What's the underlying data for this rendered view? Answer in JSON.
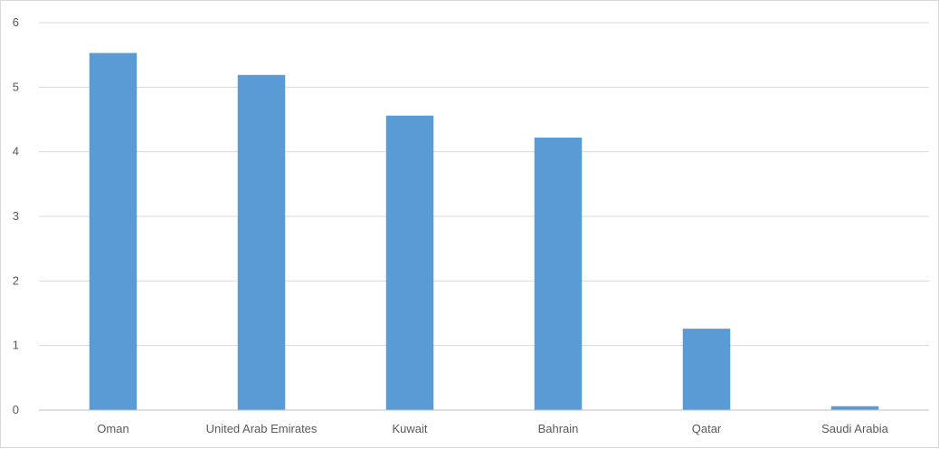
{
  "chart_data": {
    "type": "bar",
    "title": "",
    "xlabel": "",
    "ylabel": "",
    "categories": [
      "Oman",
      "United Arab Emirates",
      "Kuwait",
      "Bahrain",
      "Qatar",
      "Saudi Arabia"
    ],
    "values": [
      5.53,
      5.19,
      4.56,
      4.22,
      1.26,
      0.06
    ],
    "ylim": [
      0,
      6
    ],
    "yticks": [
      "0",
      "1",
      "2",
      "3",
      "4",
      "5",
      "6"
    ],
    "grid": true,
    "legend": "none",
    "bar_color": "#5b9bd5",
    "grid_color": "#d9d9d9",
    "axis_color": "#bfbfbf",
    "text_color": "#595959"
  }
}
